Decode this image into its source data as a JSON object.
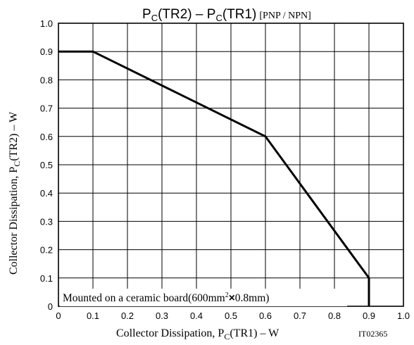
{
  "chart_data": {
    "type": "line",
    "title": {
      "prefix1": "P",
      "sub1": "C",
      "mid1": "(TR2)  –  P",
      "sub2": "C",
      "mid2": "(TR1)",
      "suffix": "[PNP / NPN]"
    },
    "xlabel": {
      "pre": "Collector Dissipation, P",
      "sub": "C",
      "post": "(TR1)  –  W"
    },
    "ylabel": {
      "pre": "Collector Dissipation, P",
      "sub": "C",
      "post": "(TR2)  –  W"
    },
    "xlim": [
      0,
      1.0
    ],
    "ylim": [
      0,
      1.0
    ],
    "xticks": [
      "0",
      "0.1",
      "0.2",
      "0.3",
      "0.4",
      "0.5",
      "0.6",
      "0.7",
      "0.8",
      "0.9",
      "1.0"
    ],
    "yticks": [
      "0",
      "0.1",
      "0.2",
      "0.3",
      "0.4",
      "0.5",
      "0.6",
      "0.7",
      "0.8",
      "0.9",
      "1.0"
    ],
    "grid": true,
    "series": [
      {
        "x": [
          0,
          0.1,
          0.6,
          0.9,
          0.9
        ],
        "y": [
          0.9,
          0.9,
          0.6,
          0.1,
          0
        ]
      }
    ],
    "annotation": {
      "pre": "Mounted on a ceramic board(600mm",
      "sup": "2",
      "times": "×",
      "post": "0.8mm)"
    },
    "figure_id": "IT02365"
  }
}
